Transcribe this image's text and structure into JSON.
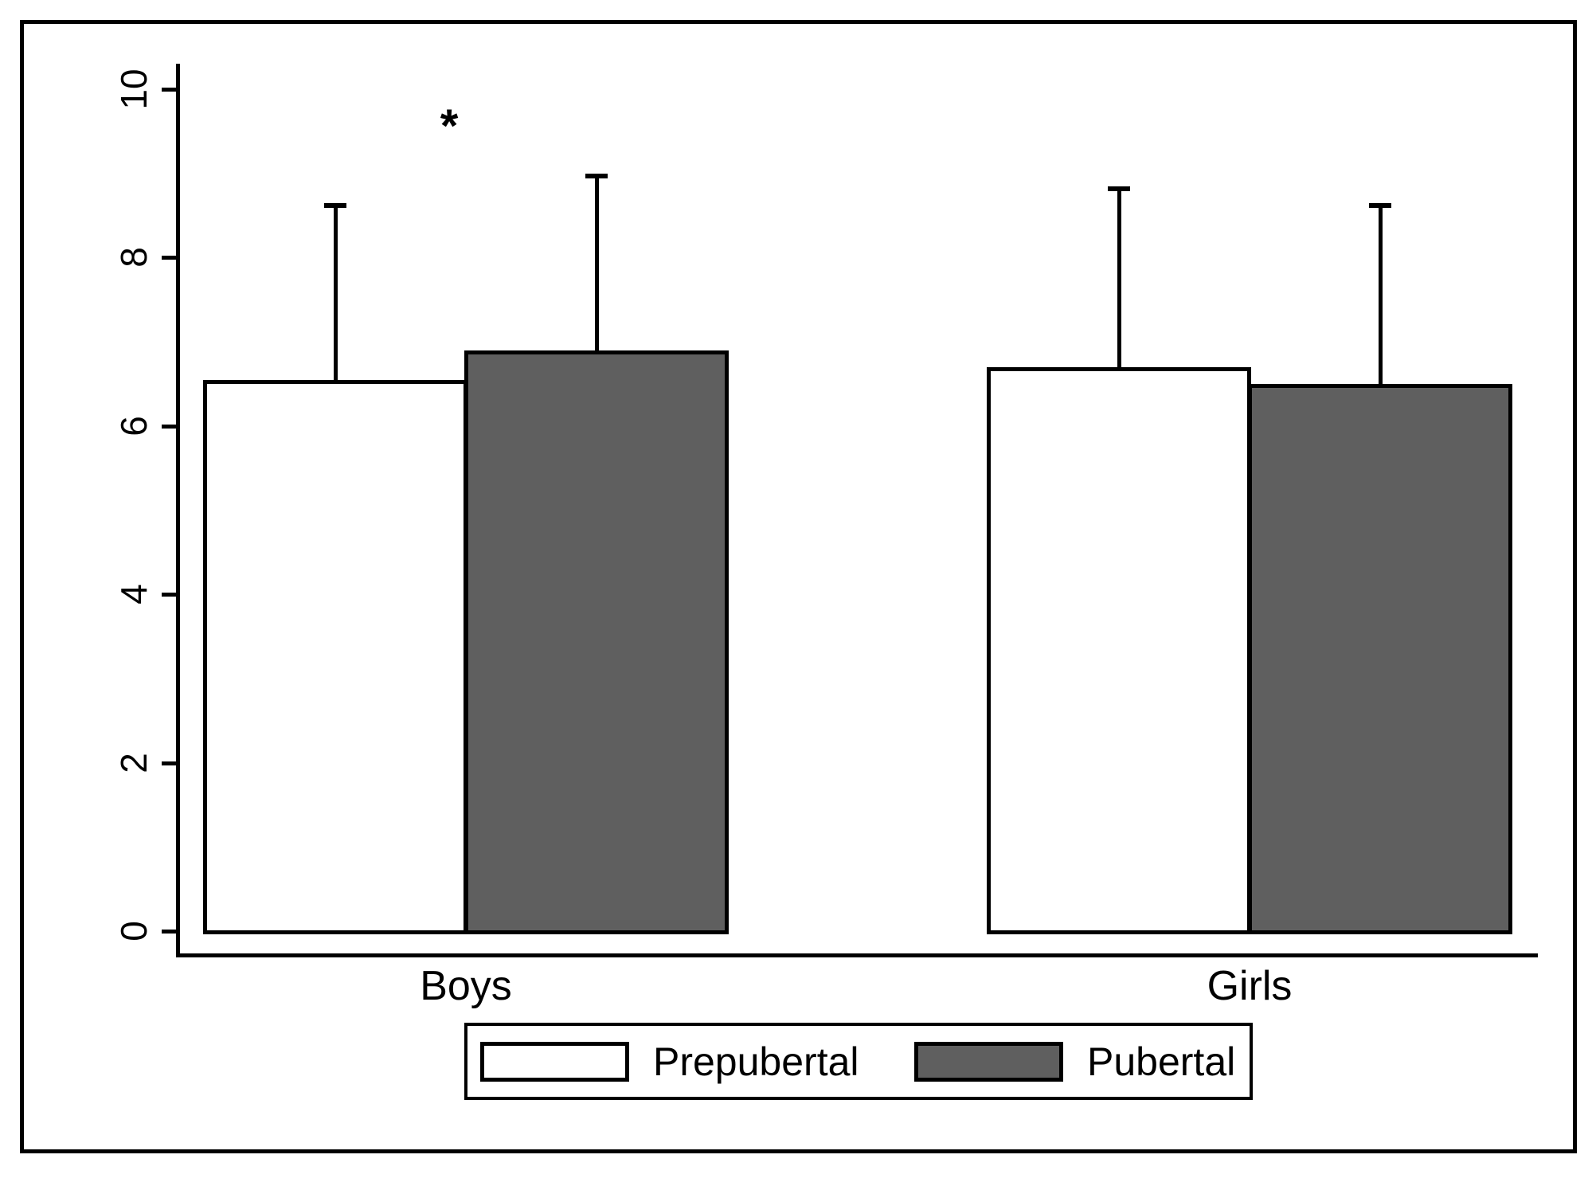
{
  "chart_data": {
    "type": "bar",
    "title": "",
    "xlabel": "",
    "ylabel": "",
    "categories": [
      "Boys",
      "Girls"
    ],
    "series": [
      {
        "name": "Prepubertal",
        "fill": "#ffffff",
        "values": [
          6.55,
          6.7
        ],
        "error_upper_top": [
          8.65,
          8.85
        ]
      },
      {
        "name": "Pubertal",
        "fill": "#5f5f5f",
        "values": [
          6.9,
          6.5
        ],
        "error_upper_top": [
          9.0,
          8.65
        ]
      }
    ],
    "ylim": [
      0,
      10
    ],
    "yticks": [
      0,
      2,
      4,
      6,
      8,
      10
    ],
    "grid": false,
    "error_bars": "upper-only",
    "legend_position": "bottom-center",
    "annotations": [
      {
        "text": "*",
        "location": "above Boys group",
        "y_value": 9.65
      }
    ]
  },
  "legend": {
    "items": [
      {
        "label": "Prepubertal",
        "swatch_color": "#ffffff"
      },
      {
        "label": "Pubertal",
        "swatch_color": "#5f5f5f"
      }
    ]
  },
  "colors": {
    "bar_gray": "#5f5f5f",
    "bar_white": "#ffffff",
    "line": "#000000",
    "background": "#ffffff"
  }
}
